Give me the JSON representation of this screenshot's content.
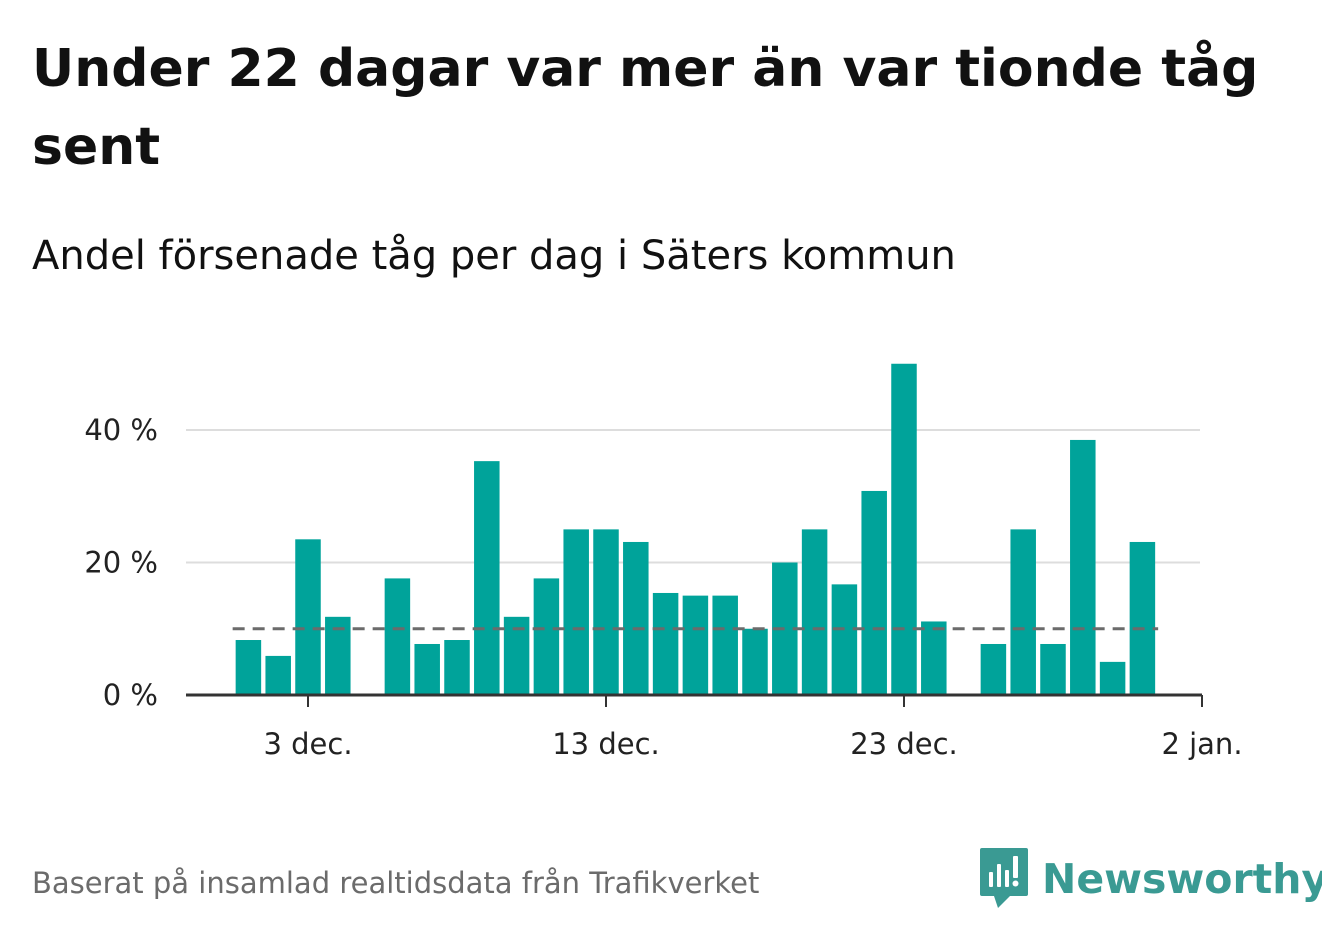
{
  "title": "Under 22 dagar var mer än var tionde tåg sent",
  "subtitle": "Andel försenade tåg per dag i Säters kommun",
  "source": "Baserat på insamlad realtidsdata från Trafikverket",
  "brand": {
    "name": "Newsworthy",
    "icon": "newsworthy-logo-icon"
  },
  "colors": {
    "bar": "#00a39a",
    "average_line": "#6b6b6b",
    "grid": "#dddddd",
    "axis": "#333333",
    "brand": "#3a9a93"
  },
  "chart_data": {
    "type": "bar",
    "title": "Andel försenade tåg per dag i Säters kommun",
    "x_tick_labels": [
      "3 dec.",
      "13 dec.",
      "23 dec.",
      "2 jan."
    ],
    "y_tick_labels": [
      "0 %",
      "20 %",
      "40 %"
    ],
    "ylim": [
      0,
      50
    ],
    "grid": true,
    "average": 10,
    "dates": [
      "2023-12-01",
      "2023-12-02",
      "2023-12-03",
      "2023-12-04",
      "2023-12-05",
      "2023-12-06",
      "2023-12-07",
      "2023-12-08",
      "2023-12-09",
      "2023-12-10",
      "2023-12-11",
      "2023-12-12",
      "2023-12-13",
      "2023-12-14",
      "2023-12-15",
      "2023-12-16",
      "2023-12-17",
      "2023-12-18",
      "2023-12-19",
      "2023-12-20",
      "2023-12-21",
      "2023-12-22",
      "2023-12-23",
      "2023-12-24",
      "2023-12-25",
      "2023-12-26",
      "2023-12-27",
      "2023-12-28",
      "2023-12-29",
      "2023-12-30",
      "2023-12-31",
      "2024-01-01"
    ],
    "values": [
      8.3,
      5.9,
      23.5,
      11.8,
      null,
      17.6,
      7.7,
      8.3,
      35.3,
      11.8,
      17.6,
      25,
      25,
      23.1,
      15.4,
      15,
      15,
      10,
      20,
      25,
      16.7,
      30.8,
      50,
      11.1,
      null,
      7.7,
      25,
      7.7,
      38.5,
      5,
      23.1,
      null
    ]
  }
}
